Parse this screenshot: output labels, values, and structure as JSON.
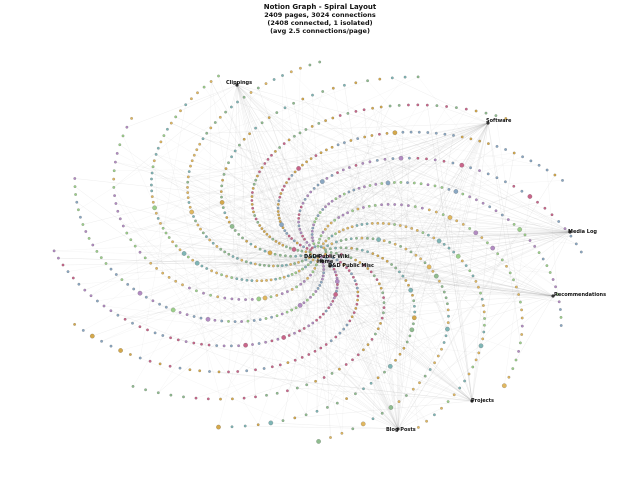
{
  "header": {
    "title": "Notion Graph - Spiral Layout",
    "line2": "2409 pages, 3024 connections",
    "line3": "(2408 connected, 1 isolated)",
    "line4": "(avg 2.5 connections/page)"
  },
  "colors": {
    "edge": "#9e9e9e",
    "node_palette": [
      "#8fbc8f",
      "#d4a84b",
      "#c9658a",
      "#8aa7c2",
      "#b28bc2",
      "#9ccf8a",
      "#e0b760",
      "#7fb5b5"
    ],
    "hub_node": "#333333"
  },
  "hubs": [
    {
      "id": "clippings",
      "label": "Clippings"
    },
    {
      "id": "software",
      "label": "Software"
    },
    {
      "id": "media-log",
      "label": "Media Log"
    },
    {
      "id": "recommendations",
      "label": "Recommendations"
    },
    {
      "id": "projects",
      "label": "Projects"
    },
    {
      "id": "blog-posts",
      "label": "Blog Posts"
    },
    {
      "id": "dnd-wiki",
      "label": "D&D Public Wiki"
    },
    {
      "id": "home",
      "label": "Home"
    },
    {
      "id": "dnd-misc",
      "label": "D&D Public Misc"
    }
  ]
}
